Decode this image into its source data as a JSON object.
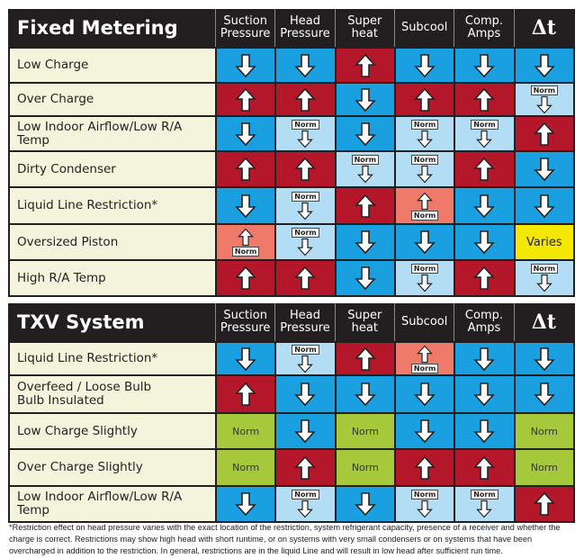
{
  "columns": [
    "Suction Pressure",
    "Head Pressure",
    "Super heat",
    "Subcool",
    "Comp. Amps",
    "Δt"
  ],
  "labels": {
    "norm": "Norm",
    "varies": "Varies"
  },
  "colors": {
    "down": "#1aa0e0",
    "up": "#b5172a",
    "norm_down": "#b3dcf5",
    "norm_up": "#f07a6a",
    "norm": "#a5c93a",
    "varies": "#f5e800"
  },
  "tables": [
    {
      "title": "Fixed Metering",
      "rows": [
        {
          "label": "Low Charge",
          "cells": [
            "down",
            "down",
            "up",
            "down",
            "down",
            "down"
          ]
        },
        {
          "label": "Over Charge",
          "cells": [
            "up",
            "up",
            "down",
            "up",
            "up",
            "norm-down"
          ]
        },
        {
          "label": "Low Indoor Airflow/Low R/A Temp",
          "cells": [
            "down",
            "norm-down",
            "down",
            "norm-down",
            "norm-down",
            "up"
          ]
        },
        {
          "label": "Dirty Condenser",
          "cells": [
            "up",
            "up",
            "norm-down",
            "norm-down",
            "up",
            "down"
          ]
        },
        {
          "label": "Liquid Line Restriction*",
          "cells": [
            "down",
            "norm-down",
            "up",
            "norm-up",
            "down",
            "down"
          ]
        },
        {
          "label": "Oversized Piston",
          "cells": [
            "norm-up",
            "norm-down",
            "down",
            "down",
            "down",
            "varies"
          ]
        },
        {
          "label": "High R/A Temp",
          "cells": [
            "up",
            "up",
            "down",
            "norm-down",
            "up",
            "norm-down"
          ]
        }
      ]
    },
    {
      "title": "TXV System",
      "rows": [
        {
          "label": "Liquid Line Restriction*",
          "cells": [
            "down",
            "norm-down",
            "up",
            "norm-up",
            "down",
            "down"
          ]
        },
        {
          "label": "Overfeed / Loose Bulb\nBulb Insulated",
          "cells": [
            "up",
            "down",
            "down",
            "down",
            "down",
            "down"
          ]
        },
        {
          "label": "Low Charge   Slightly",
          "cells": [
            "norm",
            "down",
            "norm",
            "down",
            "down",
            "norm"
          ]
        },
        {
          "label": "Over Charge   Slightly",
          "cells": [
            "norm",
            "up",
            "norm",
            "up",
            "up",
            "norm"
          ]
        },
        {
          "label": "Low Indoor Airflow/Low R/A Temp",
          "cells": [
            "down",
            "norm-down",
            "down",
            "norm-down",
            "norm-down",
            "up"
          ]
        }
      ]
    }
  ],
  "footnote": "*Restriction effect on head pressure varies with the exact location of the restriction, system refrigerant capacity, presence of a receiver and whether the charge is correct. Restrictions may show high head with short runtime, or on systems with very small condensers or on systems that have been overcharged in addition to the restriction. In general, restrictions are in the liquid Line and will result in low head after sufficient run time."
}
